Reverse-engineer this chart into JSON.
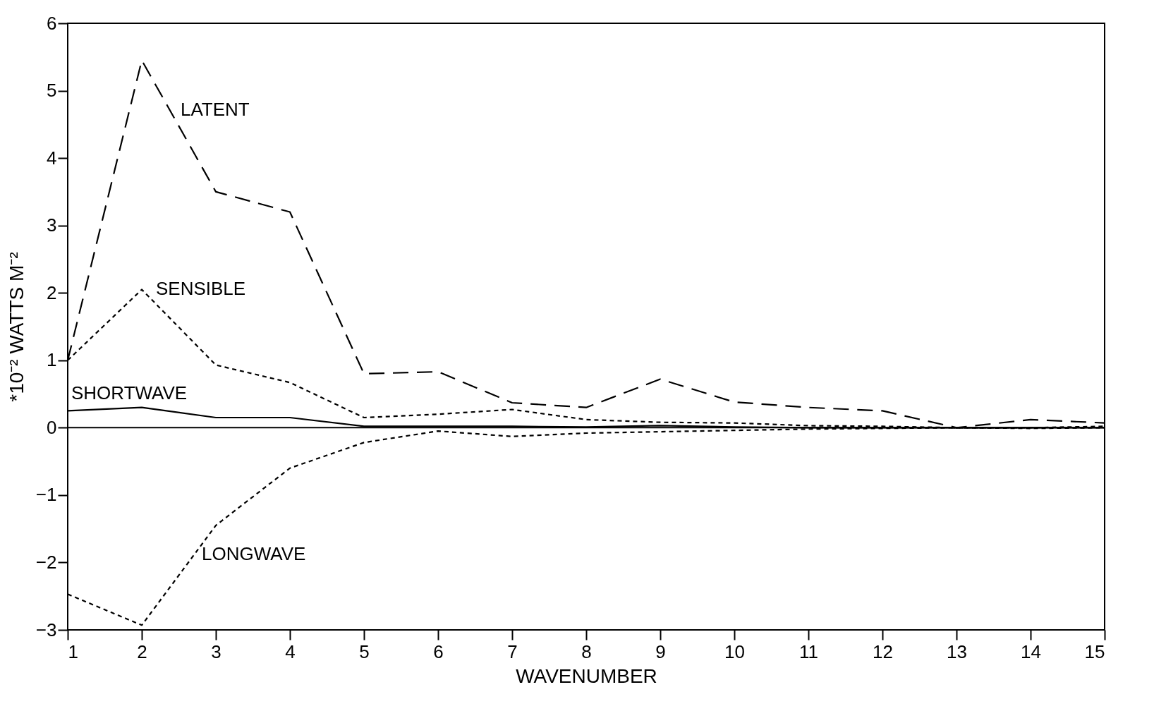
{
  "chart_data": {
    "type": "line",
    "xlabel": "WAVENUMBER",
    "ylabel": "*10⁻² WATTS M⁻²",
    "x": [
      1,
      2,
      3,
      4,
      5,
      6,
      7,
      8,
      9,
      10,
      11,
      12,
      13,
      14,
      15
    ],
    "series": [
      {
        "name": "LATENT",
        "color": "#000000",
        "line_style": "dashed",
        "values": [
          1.0,
          5.45,
          3.5,
          3.2,
          0.8,
          0.83,
          0.37,
          0.3,
          0.72,
          0.38,
          0.3,
          0.25,
          0.0,
          0.12,
          0.07
        ]
      },
      {
        "name": "SENSIBLE",
        "color": "#000000",
        "line_style": "dotted",
        "values": [
          1.0,
          2.05,
          0.93,
          0.67,
          0.15,
          0.2,
          0.27,
          0.12,
          0.08,
          0.07,
          0.03,
          0.02,
          0.0,
          0.0,
          0.02
        ]
      },
      {
        "name": "SHORTWAVE",
        "color": "#000000",
        "line_style": "solid",
        "values": [
          0.25,
          0.3,
          0.15,
          0.15,
          0.02,
          0.02,
          0.02,
          0.01,
          0.03,
          0.01,
          0.0,
          0.0,
          0.0,
          0.0,
          0.0
        ]
      },
      {
        "name": "LONGWAVE",
        "color": "#000000",
        "line_style": "dotted",
        "values": [
          -2.47,
          -2.93,
          -1.45,
          -0.6,
          -0.22,
          -0.05,
          -0.13,
          -0.08,
          -0.06,
          -0.04,
          -0.02,
          -0.01,
          0.0,
          -0.01,
          0.0
        ]
      }
    ],
    "xlim": [
      1,
      15
    ],
    "xticks": [
      1,
      2,
      3,
      4,
      5,
      6,
      7,
      8,
      9,
      10,
      11,
      12,
      13,
      14,
      15
    ],
    "ylim": [
      -3,
      6
    ],
    "yticks": [
      -3,
      -2,
      -1,
      0,
      1,
      2,
      3,
      4,
      5,
      6
    ],
    "ref_lines": [
      {
        "axis": "y",
        "value": 0
      }
    ],
    "grid": false,
    "marker": "none"
  }
}
